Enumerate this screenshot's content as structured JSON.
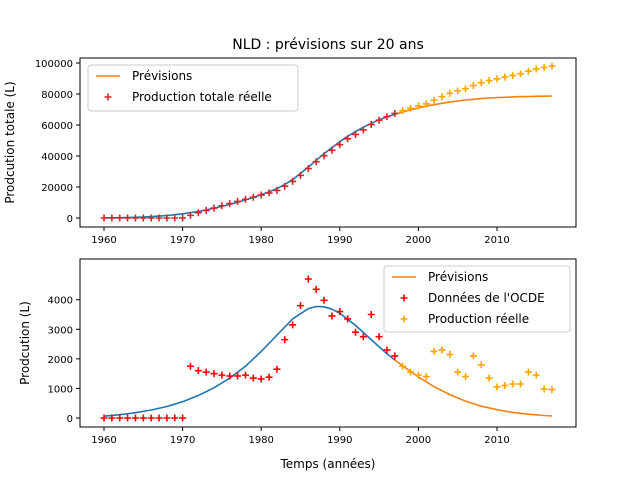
{
  "chart_data": [
    {
      "type": "line",
      "title": "NLD : prévisions sur 20 ans",
      "xlabel": "",
      "ylabel": "Prodcution totale (L)",
      "xlim": [
        1960,
        2017
      ],
      "ylim": [
        0,
        100000
      ],
      "xticks": [
        1960,
        1970,
        1980,
        1990,
        2000,
        2010
      ],
      "yticks": [
        0,
        20000,
        40000,
        60000,
        80000,
        100000
      ],
      "legend_position": "top-left",
      "legend": [
        "Prévisions",
        "Production totale réelle"
      ],
      "colors": {
        "fit": "#1f77b4",
        "forecast": "#ff7f0e",
        "observed": "#d62728",
        "observed_recent": "#ffa500"
      },
      "series": [
        {
          "name": "",
          "style": "line",
          "color": "#1f77b4",
          "x": [
            1960,
            1961,
            1962,
            1963,
            1964,
            1965,
            1966,
            1967,
            1968,
            1969,
            1970,
            1971,
            1972,
            1973,
            1974,
            1975,
            1976,
            1977,
            1978,
            1979,
            1980,
            1981,
            1982,
            1983,
            1984,
            1985,
            1986,
            1987,
            1988,
            1989,
            1990,
            1991,
            1992,
            1993,
            1994,
            1995,
            1996,
            1997
          ],
          "y": [
            100,
            150,
            220,
            320,
            460,
            650,
            900,
            1200,
            1600,
            2100,
            2700,
            3400,
            4200,
            5200,
            6300,
            7500,
            8800,
            10200,
            11700,
            13300,
            15000,
            16900,
            19000,
            21600,
            24800,
            28700,
            32900,
            37200,
            41400,
            45400,
            49200,
            52700,
            55800,
            58600,
            61100,
            63300,
            65200,
            66900
          ]
        },
        {
          "name": "Prévisions",
          "style": "line",
          "color": "#ff7f0e",
          "x": [
            1997,
            1998,
            1999,
            2000,
            2001,
            2002,
            2003,
            2004,
            2005,
            2006,
            2007,
            2008,
            2009,
            2010,
            2011,
            2012,
            2013,
            2014,
            2015,
            2016,
            2017
          ],
          "y": [
            66900,
            68400,
            69800,
            71000,
            72100,
            73100,
            74000,
            74800,
            75500,
            76100,
            76600,
            77000,
            77400,
            77700,
            77900,
            78100,
            78300,
            78400,
            78500,
            78600,
            78700
          ]
        },
        {
          "name": "Production totale réelle",
          "style": "marker",
          "color": "#d62728",
          "x": [
            1960,
            1961,
            1962,
            1963,
            1964,
            1965,
            1966,
            1967,
            1968,
            1969,
            1970,
            1971,
            1972,
            1973,
            1974,
            1975,
            1976,
            1977,
            1978,
            1979,
            1980,
            1981,
            1982,
            1983,
            1984,
            1985,
            1986,
            1987,
            1988,
            1989,
            1990,
            1991,
            1992,
            1993,
            1994,
            1995,
            1996,
            1997
          ],
          "y": [
            0,
            0,
            0,
            0,
            0,
            0,
            0,
            0,
            0,
            0,
            0,
            1700,
            3400,
            4900,
            6400,
            7900,
            9300,
            10700,
            12100,
            13400,
            14800,
            16200,
            17800,
            20500,
            23600,
            27500,
            31900,
            36300,
            40200,
            43700,
            47300,
            51100,
            53900,
            56800,
            60300,
            63100,
            65400,
            67500
          ]
        },
        {
          "name": "",
          "style": "marker",
          "color": "#ffa500",
          "x": [
            1998,
            1999,
            2000,
            2001,
            2002,
            2003,
            2004,
            2005,
            2006,
            2007,
            2008,
            2009,
            2010,
            2011,
            2012,
            2013,
            2014,
            2015,
            2016,
            2017
          ],
          "y": [
            69300,
            70800,
            72300,
            73700,
            76000,
            78300,
            80400,
            82000,
            83400,
            85500,
            87300,
            88700,
            89800,
            90900,
            92000,
            93100,
            94700,
            96100,
            97100,
            98000
          ]
        }
      ]
    },
    {
      "type": "line",
      "title": "",
      "xlabel": "Temps (années)",
      "ylabel": "Prodcution (L)",
      "xlim": [
        1960,
        2017
      ],
      "ylim": [
        0,
        4700
      ],
      "xticks": [
        1960,
        1970,
        1980,
        1990,
        2000,
        2010
      ],
      "yticks": [
        0,
        1000,
        2000,
        3000,
        4000
      ],
      "legend_position": "top-right",
      "legend": [
        "Prévisions",
        "Données de l'OCDE",
        "Production réelle"
      ],
      "series": [
        {
          "name": "",
          "style": "line",
          "color": "#1f77b4",
          "x": [
            1960,
            1962,
            1964,
            1966,
            1968,
            1970,
            1972,
            1974,
            1976,
            1978,
            1980,
            1982,
            1984,
            1986,
            1987,
            1988,
            1989,
            1990,
            1992,
            1994,
            1996,
            1997
          ],
          "y": [
            60,
            110,
            180,
            270,
            390,
            550,
            760,
            1020,
            1350,
            1750,
            2250,
            2800,
            3350,
            3700,
            3770,
            3760,
            3680,
            3540,
            3130,
            2650,
            2170,
            1960
          ]
        },
        {
          "name": "Prévisions",
          "style": "line",
          "color": "#ff7f0e",
          "x": [
            1997,
            1998,
            2000,
            2002,
            2004,
            2006,
            2008,
            2010,
            2012,
            2014,
            2016,
            2017
          ],
          "y": [
            1960,
            1760,
            1390,
            1060,
            790,
            570,
            400,
            280,
            190,
            130,
            85,
            70
          ]
        },
        {
          "name": "Données de l'OCDE",
          "style": "marker",
          "color": "#ff0000",
          "x": [
            1960,
            1961,
            1962,
            1963,
            1964,
            1965,
            1966,
            1967,
            1968,
            1969,
            1970,
            1971,
            1972,
            1973,
            1974,
            1975,
            1976,
            1977,
            1978,
            1979,
            1980,
            1981,
            1982,
            1983,
            1984,
            1985,
            1986,
            1987,
            1988,
            1989,
            1990,
            1991,
            1992,
            1993,
            1994,
            1995,
            1996,
            1997
          ],
          "y": [
            0,
            0,
            0,
            0,
            0,
            0,
            0,
            0,
            0,
            0,
            0,
            1750,
            1600,
            1550,
            1500,
            1450,
            1420,
            1420,
            1450,
            1350,
            1320,
            1380,
            1650,
            2650,
            3150,
            3800,
            4700,
            4350,
            3980,
            3450,
            3600,
            3350,
            2900,
            2750,
            3500,
            2750,
            2300,
            2100
          ]
        },
        {
          "name": "Production réelle",
          "style": "marker",
          "color": "#ffa500",
          "x": [
            1998,
            1999,
            2000,
            2001,
            2002,
            2003,
            2004,
            2005,
            2006,
            2007,
            2008,
            2009,
            2010,
            2011,
            2012,
            2013,
            2014,
            2015,
            2016,
            2017
          ],
          "y": [
            1750,
            1550,
            1450,
            1400,
            2250,
            2300,
            2150,
            1550,
            1400,
            2100,
            1800,
            1350,
            1050,
            1100,
            1150,
            1150,
            1550,
            1450,
            980,
            960
          ]
        }
      ]
    }
  ]
}
